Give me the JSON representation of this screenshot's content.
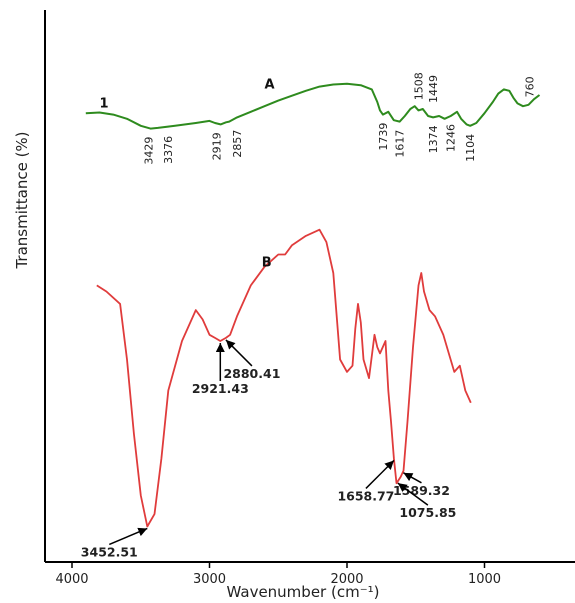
{
  "chart_data": {
    "type": "line",
    "title": "",
    "xlabel": "Wavenumber (cm⁻¹)",
    "ylabel": "Transmittance (%)",
    "xlim": [
      4000,
      600
    ],
    "x_reversed": true,
    "x_ticks": [
      4000,
      3000,
      2000,
      1000
    ],
    "y_ticks_shown": false,
    "colors": {
      "A": "#2e8b1e",
      "B": "#e03c3c",
      "axis": "#000000"
    },
    "series": [
      {
        "name": "A",
        "label_text": "A",
        "extra_label": "1",
        "points": [
          [
            3900,
            62
          ],
          [
            3800,
            62.5
          ],
          [
            3700,
            61
          ],
          [
            3600,
            58
          ],
          [
            3500,
            53
          ],
          [
            3429,
            51
          ],
          [
            3376,
            51.5
          ],
          [
            3250,
            53
          ],
          [
            3100,
            55
          ],
          [
            3000,
            56.5
          ],
          [
            2960,
            55
          ],
          [
            2919,
            54
          ],
          [
            2880,
            55.5
          ],
          [
            2857,
            56
          ],
          [
            2800,
            59
          ],
          [
            2700,
            63
          ],
          [
            2600,
            67
          ],
          [
            2500,
            71
          ],
          [
            2400,
            74.5
          ],
          [
            2300,
            78
          ],
          [
            2200,
            81
          ],
          [
            2100,
            82.5
          ],
          [
            2000,
            83
          ],
          [
            1900,
            82
          ],
          [
            1820,
            79
          ],
          [
            1780,
            70
          ],
          [
            1760,
            64
          ],
          [
            1739,
            61
          ],
          [
            1700,
            63
          ],
          [
            1660,
            57
          ],
          [
            1617,
            56
          ],
          [
            1580,
            60
          ],
          [
            1540,
            65
          ],
          [
            1508,
            67
          ],
          [
            1480,
            64
          ],
          [
            1449,
            65
          ],
          [
            1410,
            60
          ],
          [
            1374,
            59
          ],
          [
            1330,
            60
          ],
          [
            1290,
            58
          ],
          [
            1246,
            60
          ],
          [
            1200,
            63
          ],
          [
            1170,
            58
          ],
          [
            1130,
            54
          ],
          [
            1104,
            53
          ],
          [
            1060,
            55
          ],
          [
            1000,
            62
          ],
          [
            940,
            70
          ],
          [
            900,
            76
          ],
          [
            860,
            79
          ],
          [
            820,
            78
          ],
          [
            790,
            73
          ],
          [
            760,
            69
          ],
          [
            720,
            67
          ],
          [
            680,
            68
          ],
          [
            640,
            72
          ],
          [
            600,
            75
          ]
        ],
        "annotations": [
          {
            "text": "3429",
            "x": 3429
          },
          {
            "text": "3376",
            "x": 3376
          },
          {
            "text": "2919",
            "x": 2919
          },
          {
            "text": "2857",
            "x": 2857
          },
          {
            "text": "1739",
            "x": 1739
          },
          {
            "text": "1617",
            "x": 1617
          },
          {
            "text": "1508",
            "x": 1508
          },
          {
            "text": "1449",
            "x": 1449
          },
          {
            "text": "1374",
            "x": 1374
          },
          {
            "text": "1246",
            "x": 1246
          },
          {
            "text": "1104",
            "x": 1104
          },
          {
            "text": "760",
            "x": 760
          }
        ]
      },
      {
        "name": "B",
        "label_text": "B",
        "points": [
          [
            3820,
            42
          ],
          [
            3750,
            41
          ],
          [
            3650,
            39
          ],
          [
            3600,
            30
          ],
          [
            3550,
            18
          ],
          [
            3500,
            8
          ],
          [
            3452.51,
            3
          ],
          [
            3400,
            5
          ],
          [
            3350,
            14
          ],
          [
            3300,
            25
          ],
          [
            3200,
            33
          ],
          [
            3100,
            38
          ],
          [
            3050,
            36.5
          ],
          [
            3000,
            34
          ],
          [
            2960,
            33.5
          ],
          [
            2921.43,
            33
          ],
          [
            2880.41,
            33.5
          ],
          [
            2850,
            34
          ],
          [
            2800,
            37
          ],
          [
            2700,
            42
          ],
          [
            2600,
            45
          ],
          [
            2500,
            47
          ],
          [
            2450,
            47
          ],
          [
            2400,
            48.5
          ],
          [
            2300,
            50
          ],
          [
            2200,
            51
          ],
          [
            2150,
            49
          ],
          [
            2100,
            44
          ],
          [
            2050,
            30
          ],
          [
            2000,
            28
          ],
          [
            1960,
            29
          ],
          [
            1940,
            35
          ],
          [
            1920,
            39
          ],
          [
            1900,
            36
          ],
          [
            1880,
            30
          ],
          [
            1840,
            27
          ],
          [
            1800,
            34
          ],
          [
            1780,
            32
          ],
          [
            1760,
            31
          ],
          [
            1720,
            33
          ],
          [
            1700,
            25
          ],
          [
            1680,
            20
          ],
          [
            1658.77,
            14
          ],
          [
            1640,
            10
          ],
          [
            1610,
            11
          ],
          [
            1589.32,
            12
          ],
          [
            1560,
            20
          ],
          [
            1520,
            32
          ],
          [
            1480,
            42
          ],
          [
            1460,
            44
          ],
          [
            1440,
            41
          ],
          [
            1400,
            38
          ],
          [
            1360,
            37
          ],
          [
            1300,
            34
          ],
          [
            1260,
            31
          ],
          [
            1220,
            28
          ],
          [
            1180,
            29
          ],
          [
            1140,
            25
          ],
          [
            1100,
            23
          ]
        ],
        "annotations": [
          {
            "text": "3452.51",
            "x": 3452.51
          },
          {
            "text": "2921.43",
            "x": 2921.43
          },
          {
            "text": "2880.41",
            "x": 2880.41
          },
          {
            "text": "1658.77",
            "x": 1658.77
          },
          {
            "text": "1589.32",
            "x": 1589.32
          },
          {
            "text": "1075.85",
            "x": 1075.85
          }
        ]
      }
    ]
  }
}
